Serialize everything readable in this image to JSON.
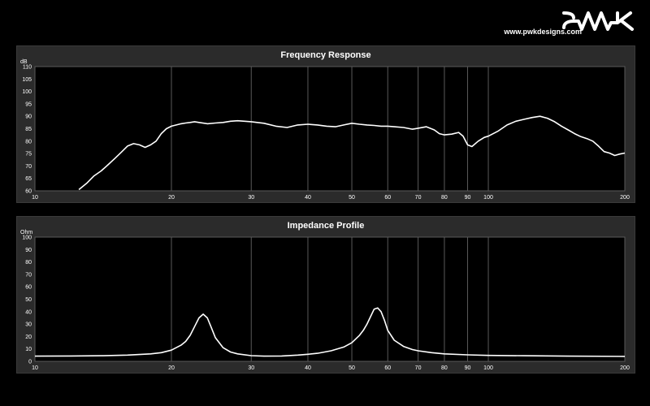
{
  "brand": {
    "logo_text": "PWK",
    "url": "www.pwkdesigns.com"
  },
  "colors": {
    "background": "#000000",
    "panel": "#2b2b2b",
    "plot_area": "#000000",
    "grid": "#5a5a5a",
    "curve": "#ffffff",
    "text": "#ffffff"
  },
  "chart_data": [
    {
      "type": "line",
      "title": "Frequency Response",
      "ylabel": "dB",
      "xlabel": "",
      "xscale": "log",
      "xlim": [
        10,
        200
      ],
      "ylim": [
        60,
        110
      ],
      "x_ticks": [
        10,
        20,
        30,
        40,
        50,
        60,
        70,
        80,
        90,
        100,
        200
      ],
      "y_ticks": [
        60,
        65,
        70,
        75,
        80,
        85,
        90,
        95,
        100,
        105,
        110
      ],
      "grid": true,
      "series": [
        {
          "x": [
            12.5,
            13,
            13.5,
            14,
            14.5,
            15,
            15.5,
            16,
            16.5,
            17,
            17.5,
            18,
            18.5,
            19,
            19.5,
            20,
            20.5,
            21,
            21.5,
            22,
            22.5,
            23,
            24,
            25,
            26,
            27,
            28,
            29,
            30,
            32,
            34,
            36,
            38,
            40,
            42,
            44,
            46,
            48,
            50,
            52,
            54,
            56,
            58,
            60,
            62,
            65,
            68,
            70,
            73,
            76,
            78,
            80,
            83,
            86,
            88,
            90,
            92,
            95,
            98,
            100,
            105,
            110,
            115,
            120,
            125,
            130,
            135,
            140,
            145,
            150,
            155,
            160,
            165,
            170,
            175,
            180,
            185,
            190,
            195,
            200
          ],
          "y": [
            60.5,
            63,
            66,
            68,
            70.5,
            73,
            75.5,
            78,
            79,
            78.5,
            77.5,
            78.5,
            80,
            83,
            85,
            86,
            86.5,
            87,
            87.3,
            87.5,
            87.8,
            87.5,
            87,
            87.3,
            87.5,
            88,
            88.2,
            88,
            87.8,
            87.2,
            86,
            85.5,
            86.5,
            86.8,
            86.5,
            86,
            85.8,
            86.5,
            87.2,
            86.8,
            86.5,
            86.3,
            86,
            86,
            85.8,
            85.5,
            84.8,
            85.2,
            85.8,
            84.5,
            83,
            82.5,
            82.8,
            83.5,
            82,
            78.5,
            77.8,
            80,
            81.5,
            82,
            84,
            86.5,
            88,
            88.8,
            89.5,
            90,
            89.2,
            87.8,
            86,
            84.5,
            83,
            81.8,
            81,
            80,
            78,
            75.8,
            75.2,
            74.2,
            74.8,
            75.2
          ]
        }
      ]
    },
    {
      "type": "line",
      "title": "Impedance Profile",
      "ylabel": "Ohm",
      "xlabel": "",
      "xscale": "log",
      "xlim": [
        10,
        200
      ],
      "ylim": [
        0,
        100
      ],
      "x_ticks": [
        10,
        20,
        30,
        40,
        50,
        60,
        70,
        80,
        90,
        100,
        200
      ],
      "y_ticks": [
        0,
        10,
        20,
        30,
        40,
        50,
        60,
        70,
        80,
        90,
        100
      ],
      "grid": true,
      "series": [
        {
          "x": [
            10,
            12,
            14,
            16,
            18,
            19,
            20,
            21,
            21.5,
            22,
            22.5,
            23,
            23.5,
            24,
            24.5,
            25,
            26,
            27,
            28,
            30,
            32,
            35,
            38,
            40,
            42,
            45,
            48,
            50,
            52,
            53,
            54,
            55,
            56,
            57,
            58,
            59,
            60,
            62,
            65,
            68,
            70,
            75,
            80,
            90,
            100,
            120,
            150,
            200
          ],
          "y": [
            4.2,
            4.3,
            4.5,
            5,
            6,
            7,
            9,
            13,
            16,
            21,
            28,
            35,
            38,
            35,
            27,
            19,
            11,
            7.5,
            6,
            4.6,
            4.2,
            4.3,
            5,
            5.7,
            6.5,
            8.5,
            11.5,
            15,
            21,
            25,
            30,
            36,
            42,
            43,
            40,
            33,
            25,
            17,
            12,
            9.5,
            8.5,
            7,
            6,
            5.2,
            4.8,
            4.5,
            4.2,
            4
          ]
        }
      ]
    }
  ]
}
